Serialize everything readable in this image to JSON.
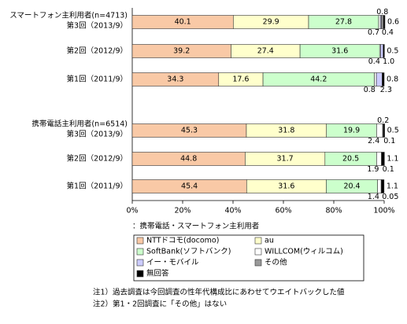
{
  "chart_data": {
    "type": "stacked-barh",
    "group_labels": [
      "スマートフォン主利用者(n=4713)",
      "携帯電話主利用者(n=6514)"
    ],
    "categories": [
      "第3回（2013/9）",
      "第2回（2012/9）",
      "第1回（2011/9）",
      "第3回（2013/9）",
      "第2回（2012/9）",
      "第1回（2011/9）"
    ],
    "series": [
      {
        "name": "NTTドコモ(docomo)",
        "color": "#f9c9a6",
        "values": [
          40.1,
          39.2,
          34.3,
          45.3,
          44.8,
          45.4
        ]
      },
      {
        "name": "au",
        "color": "#ffffcc",
        "values": [
          29.9,
          27.4,
          17.6,
          31.8,
          31.7,
          31.6
        ]
      },
      {
        "name": "SoftBank(ソフトバンク)",
        "color": "#ccffcc",
        "values": [
          27.8,
          31.6,
          44.2,
          19.9,
          20.5,
          20.4
        ]
      },
      {
        "name": "WILLCOM(ウィルコム)",
        "color": "#ffffff",
        "values": [
          0.7,
          0.4,
          0.8,
          2.4,
          1.9,
          1.4
        ]
      },
      {
        "name": "イー・モバイル",
        "color": "#ccccff",
        "values": [
          0.4,
          1.0,
          2.3,
          0.1,
          0.1,
          0.05
        ],
        "value_labels": [
          "0.4",
          "1.0",
          "2.3",
          "0.1",
          "0.1",
          "0.05"
        ]
      },
      {
        "name": "その他",
        "color": "#999999",
        "values": [
          0.8,
          null,
          null,
          0.2,
          null,
          null
        ]
      },
      {
        "name": "無回答",
        "color": "#000000",
        "values": [
          0.6,
          0.5,
          0.8,
          0.5,
          1.1,
          1.1
        ]
      }
    ],
    "xlim": [
      0,
      100
    ],
    "xticks": [
      {
        "value": 0,
        "label": "0%"
      },
      {
        "value": 20,
        "label": "20%"
      },
      {
        "value": 40,
        "label": "40%"
      },
      {
        "value": 60,
        "label": "60%"
      },
      {
        "value": 80,
        "label": "80%"
      },
      {
        "value": 100,
        "label": "100%"
      }
    ],
    "legend_title": "：携帯電話・スマートフォン主利用者",
    "notes": [
      "注1）過去調査は今回調査の性年代構成比にあわせてウエイトバックした値",
      "注2）第1・2回調査に「その他」はない"
    ]
  }
}
